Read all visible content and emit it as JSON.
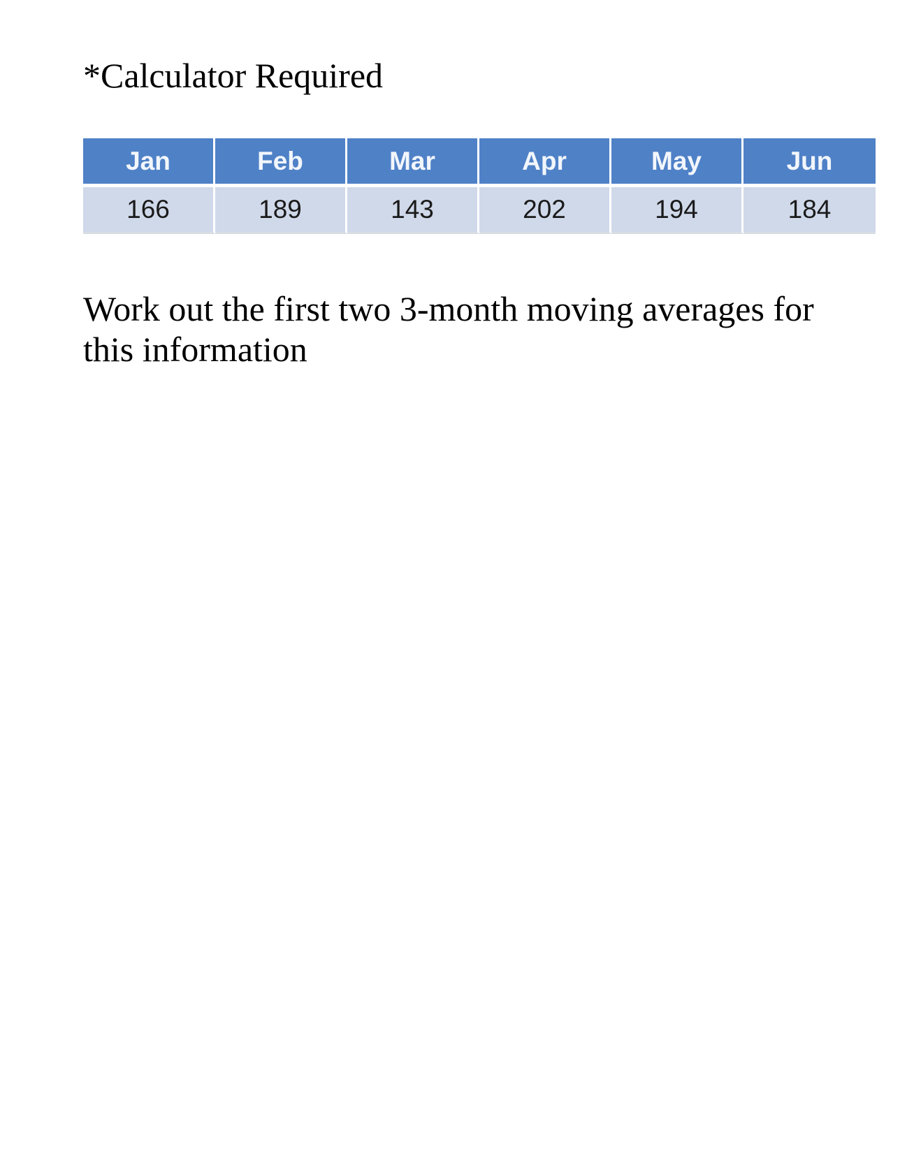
{
  "header": {
    "note": "*Calculator Required"
  },
  "table": {
    "months": [
      "Jan",
      "Feb",
      "Mar",
      "Apr",
      "May",
      "Jun"
    ],
    "values": [
      "166",
      "189",
      "143",
      "202",
      "194",
      "184"
    ],
    "header_color": "#4f81c7",
    "row_color": "#d0d9ea"
  },
  "question": {
    "text": "Work out the first two 3-month moving averages for this information"
  }
}
